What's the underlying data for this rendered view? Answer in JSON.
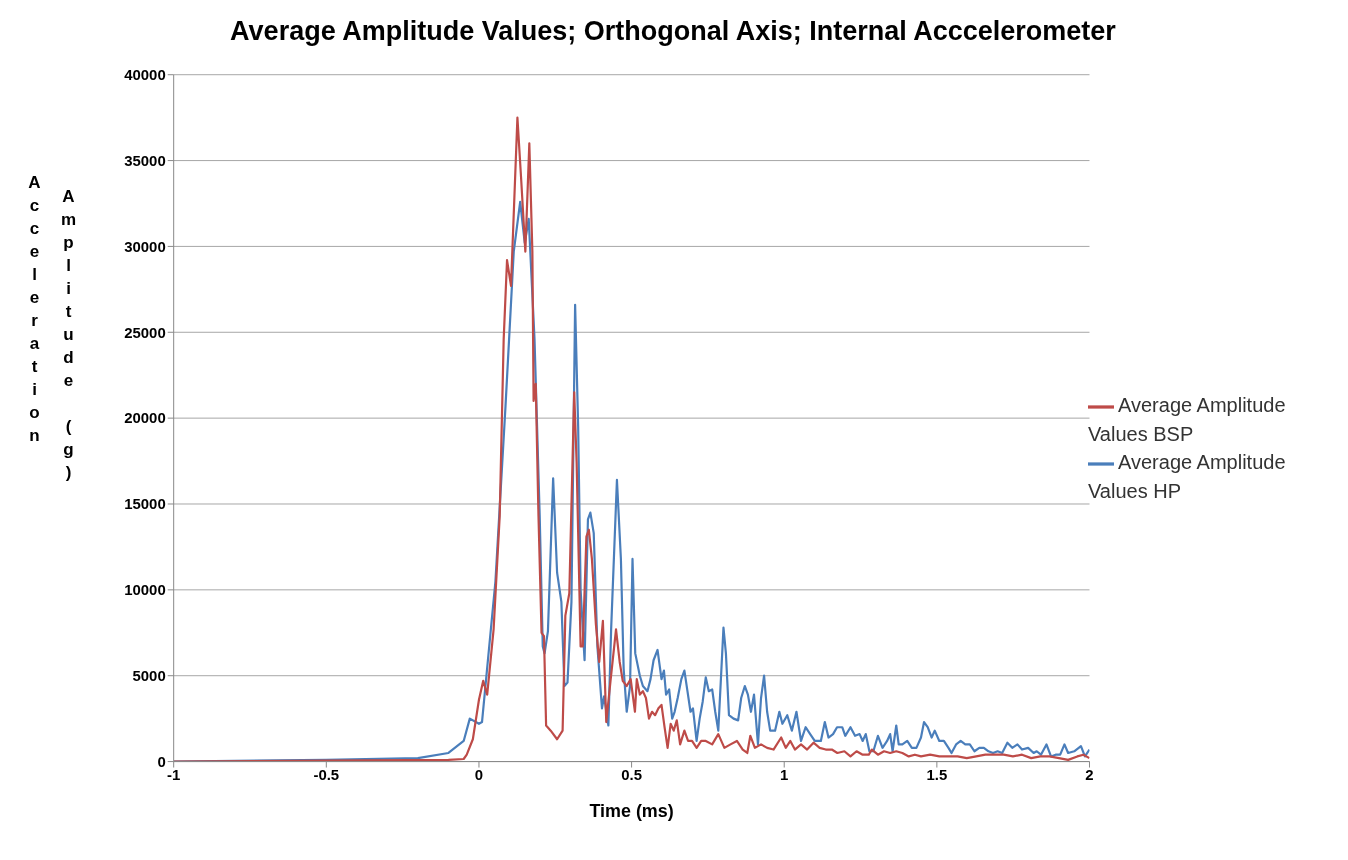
{
  "chart_data": {
    "type": "line",
    "title": "Average Amplitude Values; Orthogonal Axis; Internal Acccelerometer",
    "xlabel": "Time (ms)",
    "ylabel": "Acceleration Amplitude (g)",
    "xlim": [
      -1,
      2
    ],
    "xticks": [
      -1,
      -0.5,
      0,
      0.5,
      1,
      1.5,
      2
    ],
    "ylim": [
      0,
      40000
    ],
    "yticks": [
      0,
      5000,
      10000,
      15000,
      20000,
      25000,
      30000,
      35000,
      40000
    ],
    "grid": "y",
    "legend": "right",
    "marker": "none",
    "line_style": "solid",
    "series": [
      {
        "name": "Average Amplitude Values HP",
        "color": "#4a7ebb",
        "x": [
          -1,
          -0.5,
          -0.2,
          -0.1,
          -0.05,
          -0.03,
          0,
          0.01,
          0.054,
          0.087,
          0.114,
          0.135,
          0.15,
          0.163,
          0.182,
          0.199,
          0.209,
          0.215,
          0.226,
          0.243,
          0.256,
          0.27,
          0.28,
          0.29,
          0.303,
          0.315,
          0.325,
          0.333,
          0.346,
          0.357,
          0.365,
          0.376,
          0.388,
          0.403,
          0.41,
          0.424,
          0.433,
          0.452,
          0.465,
          0.474,
          0.484,
          0.495,
          0.503,
          0.512,
          0.527,
          0.537,
          0.552,
          0.562,
          0.572,
          0.585,
          0.598,
          0.606,
          0.613,
          0.623,
          0.633,
          0.641,
          0.651,
          0.663,
          0.673,
          0.683,
          0.693,
          0.701,
          0.713,
          0.723,
          0.733,
          0.743,
          0.753,
          0.764,
          0.774,
          0.784,
          0.792,
          0.801,
          0.809,
          0.819,
          0.834,
          0.849,
          0.859,
          0.871,
          0.881,
          0.891,
          0.901,
          0.914,
          0.924,
          0.934,
          0.944,
          0.954,
          0.97,
          0.984,
          0.994,
          1.01,
          1.025,
          1.04,
          1.055,
          1.07,
          1.085,
          1.1,
          1.12,
          1.133,
          1.145,
          1.16,
          1.173,
          1.19,
          1.2,
          1.217,
          1.232,
          1.247,
          1.257,
          1.267,
          1.279,
          1.292,
          1.307,
          1.322,
          1.337,
          1.347,
          1.355,
          1.367,
          1.375,
          1.387,
          1.403,
          1.418,
          1.433,
          1.448,
          1.458,
          1.47,
          1.483,
          1.493,
          1.508,
          1.523,
          1.538,
          1.548,
          1.563,
          1.578,
          1.593,
          1.608,
          1.623,
          1.639,
          1.654,
          1.669,
          1.684,
          1.699,
          1.714,
          1.731,
          1.747,
          1.764,
          1.779,
          1.799,
          1.817,
          1.827,
          1.841,
          1.859,
          1.874,
          1.889,
          1.904,
          1.918,
          1.93,
          1.95,
          1.972,
          1.985,
          2
        ],
        "values": [
          0,
          100,
          200,
          500,
          1200,
          2500,
          2200,
          2300,
          10500,
          20700,
          29700,
          32600,
          30200,
          31600,
          24600,
          14300,
          6700,
          6300,
          7600,
          16500,
          11000,
          9300,
          4400,
          4600,
          9300,
          26600,
          19500,
          10000,
          5900,
          14100,
          14500,
          13300,
          6700,
          3100,
          3800,
          2100,
          7700,
          16400,
          11800,
          5400,
          2900,
          4400,
          11800,
          6300,
          5000,
          4400,
          4100,
          4800,
          5900,
          6500,
          4800,
          5300,
          3900,
          4200,
          2500,
          2900,
          3700,
          4800,
          5300,
          4100,
          2900,
          3100,
          1200,
          2500,
          3500,
          4900,
          4100,
          4200,
          2900,
          1800,
          4600,
          7800,
          6300,
          2700,
          2500,
          2400,
          3700,
          4400,
          3900,
          2900,
          3900,
          1000,
          3700,
          5000,
          2900,
          1800,
          1800,
          2900,
          2200,
          2700,
          1800,
          2900,
          1200,
          2000,
          1600,
          1200,
          1200,
          2300,
          1400,
          1600,
          2000,
          2000,
          1500,
          2000,
          1500,
          1600,
          1200,
          1600,
          600,
          600,
          1500,
          800,
          1200,
          1600,
          600,
          2100,
          1000,
          1000,
          1200,
          800,
          800,
          1400,
          2300,
          2000,
          1400,
          1800,
          1200,
          1200,
          800,
          500,
          1000,
          1200,
          1000,
          1000,
          600,
          800,
          800,
          600,
          500,
          600,
          500,
          1100,
          800,
          1000,
          700,
          800,
          500,
          600,
          400,
          1000,
          300,
          400,
          400,
          1000,
          500,
          600,
          900,
          300,
          700
        ]
      },
      {
        "name": "Average Amplitude Values BSP",
        "color": "#be4b48",
        "x": [
          -1,
          -0.5,
          -0.1,
          -0.05,
          -0.04,
          -0.02,
          0,
          0.014,
          0.027,
          0.048,
          0.068,
          0.081,
          0.092,
          0.105,
          0.126,
          0.138,
          0.152,
          0.165,
          0.175,
          0.179,
          0.186,
          0.195,
          0.205,
          0.213,
          0.22,
          0.235,
          0.256,
          0.274,
          0.283,
          0.296,
          0.312,
          0.32,
          0.333,
          0.34,
          0.352,
          0.36,
          0.37,
          0.383,
          0.394,
          0.406,
          0.417,
          0.431,
          0.449,
          0.461,
          0.471,
          0.484,
          0.497,
          0.511,
          0.517,
          0.527,
          0.537,
          0.547,
          0.557,
          0.567,
          0.577,
          0.588,
          0.598,
          0.608,
          0.618,
          0.628,
          0.638,
          0.648,
          0.659,
          0.673,
          0.685,
          0.698,
          0.713,
          0.728,
          0.743,
          0.764,
          0.784,
          0.804,
          0.824,
          0.845,
          0.864,
          0.879,
          0.889,
          0.904,
          0.924,
          0.944,
          0.965,
          0.99,
          1.005,
          1.02,
          1.035,
          1.055,
          1.075,
          1.096,
          1.116,
          1.136,
          1.156,
          1.174,
          1.197,
          1.217,
          1.237,
          1.257,
          1.277,
          1.287,
          1.307,
          1.327,
          1.347,
          1.367,
          1.387,
          1.408,
          1.428,
          1.448,
          1.478,
          1.508,
          1.538,
          1.568,
          1.598,
          1.629,
          1.659,
          1.689,
          1.719,
          1.749,
          1.779,
          1.809,
          1.839,
          1.869,
          1.9,
          1.93,
          1.96,
          1.98,
          2
        ],
        "values": [
          0,
          50,
          100,
          150,
          400,
          1300,
          3600,
          4700,
          3900,
          7700,
          14300,
          24600,
          29200,
          27700,
          37500,
          34000,
          29700,
          36000,
          29700,
          21000,
          22000,
          14300,
          7500,
          7300,
          2100,
          1800,
          1300,
          1800,
          8500,
          9800,
          21500,
          17400,
          6700,
          6700,
          13100,
          13500,
          11800,
          8000,
          5800,
          8200,
          2300,
          4700,
          7700,
          5800,
          4700,
          4400,
          4800,
          2900,
          4800,
          3900,
          4100,
          3700,
          2500,
          2900,
          2700,
          3100,
          3300,
          2000,
          800,
          2200,
          1800,
          2400,
          1000,
          1800,
          1200,
          1200,
          800,
          1200,
          1200,
          1000,
          1600,
          800,
          1000,
          1200,
          700,
          500,
          1500,
          800,
          1000,
          800,
          700,
          1400,
          800,
          1200,
          700,
          1000,
          700,
          1100,
          800,
          700,
          700,
          500,
          600,
          300,
          600,
          400,
          400,
          700,
          400,
          600,
          500,
          600,
          500,
          300,
          400,
          300,
          400,
          300,
          300,
          300,
          200,
          300,
          400,
          400,
          400,
          300,
          400,
          200,
          300,
          300,
          200,
          100,
          300,
          400,
          200
        ]
      }
    ]
  }
}
